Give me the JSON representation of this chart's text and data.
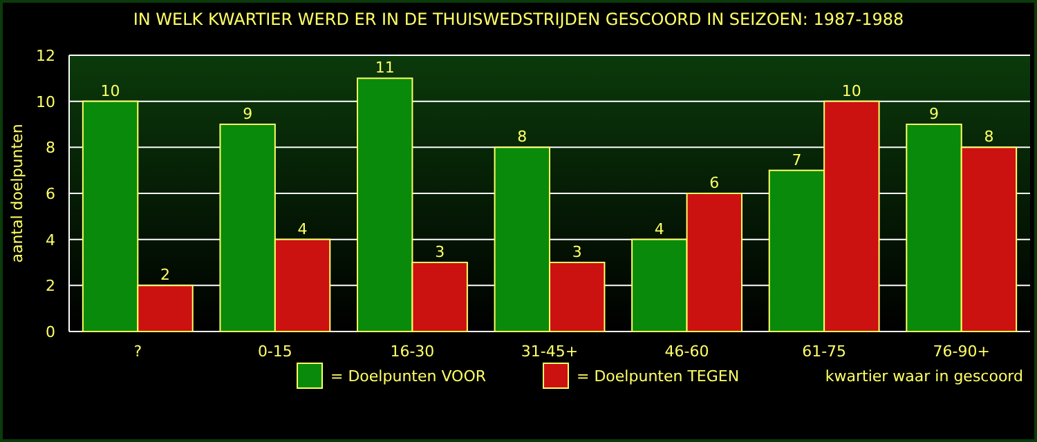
{
  "chart_data": {
    "type": "bar",
    "title": "IN WELK KWARTIER WERD ER IN DE THUISWEDSTRIJDEN GESCOORD IN SEIZOEN: 1987-1988",
    "xlabel": "kwartier waar in gescoord",
    "ylabel": "aantal doelpunten",
    "categories": [
      "?",
      "0-15",
      "16-30",
      "31-45+",
      "46-60",
      "61-75",
      "76-90+"
    ],
    "series": [
      {
        "name": "= Doelpunten VOOR",
        "color": "#0a8a0a",
        "values": [
          10,
          9,
          11,
          8,
          4,
          7,
          9
        ]
      },
      {
        "name": "= Doelpunten TEGEN",
        "color": "#cc1111",
        "values": [
          2,
          4,
          3,
          3,
          6,
          10,
          8
        ]
      }
    ],
    "ylim": [
      0,
      12
    ],
    "yticks": [
      0,
      2,
      4,
      6,
      8,
      10,
      12
    ],
    "grid": "y",
    "legend": "bottom",
    "data_labels": true
  }
}
